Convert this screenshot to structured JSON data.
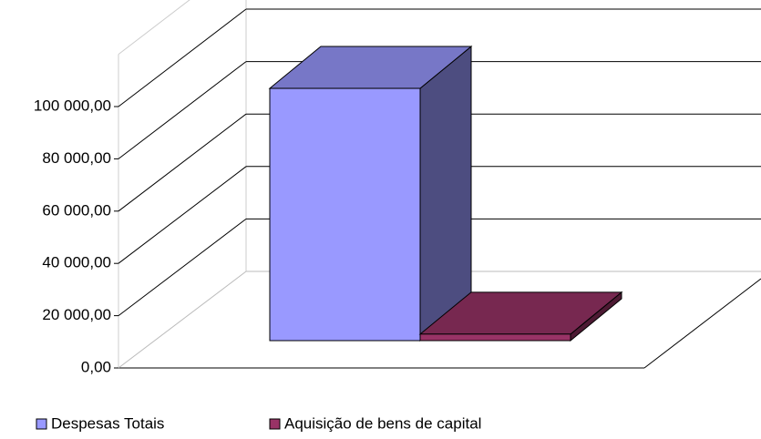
{
  "chart_data": {
    "type": "bar3d",
    "categories": [
      ""
    ],
    "series": [
      {
        "name": "Despesas Totais",
        "color": "#9999ff",
        "values": [
          96500
        ]
      },
      {
        "name": "Aquisição de bens de capital",
        "color": "#993366",
        "values": [
          2500
        ]
      }
    ],
    "ylim": [
      0,
      120000
    ],
    "yticks": [
      {
        "value": 0,
        "label": "0,00"
      },
      {
        "value": 20000,
        "label": "20 000,00"
      },
      {
        "value": 40000,
        "label": "40 000,00"
      },
      {
        "value": 60000,
        "label": "60 000,00"
      },
      {
        "value": 80000,
        "label": "80 000,00"
      },
      {
        "value": 100000,
        "label": "100 000,00"
      }
    ],
    "grid": true,
    "legend": "bottom"
  }
}
